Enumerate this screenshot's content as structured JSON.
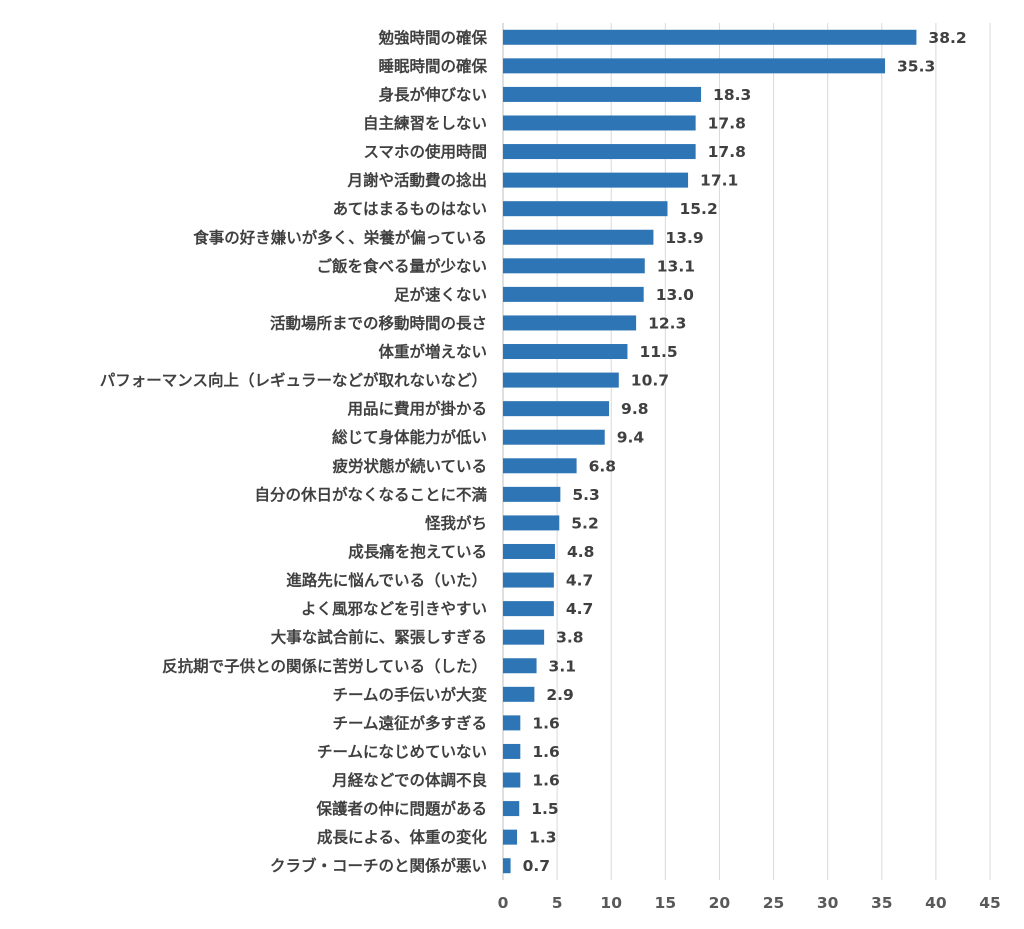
{
  "chart_data": {
    "type": "bar",
    "orientation": "horizontal",
    "bar_color": "#2e75b6",
    "text_color": "#404040",
    "grid": true,
    "xlim": [
      0,
      45
    ],
    "x_ticks": [
      0,
      5,
      10,
      15,
      20,
      25,
      30,
      35,
      40,
      45
    ],
    "title": "",
    "xlabel": "",
    "ylabel": "",
    "categories": [
      "勉強時間の確保",
      "睡眠時間の確保",
      "身長が伸びない",
      "自主練習をしない",
      "スマホの使用時間",
      "月謝や活動費の捻出",
      "あてはまるものはない",
      "食事の好き嫌いが多く、栄養が偏っている",
      "ご飯を食べる量が少ない",
      "足が速くない",
      "活動場所までの移動時間の長さ",
      "体重が増えない",
      "パフォーマンス向上（レギュラーなどが取れないなど）",
      "用品に費用が掛かる",
      "総じて身体能力が低い",
      "疲労状態が続いている",
      "自分の休日がなくなることに不満",
      "怪我がち",
      "成長痛を抱えている",
      "進路先に悩んでいる（いた）",
      "よく風邪などを引きやすい",
      "大事な試合前に、緊張しすぎる",
      "反抗期で子供との関係に苦労している（した）",
      "チームの手伝いが大変",
      "チーム遠征が多すぎる",
      "チームになじめていない",
      "月経などでの体調不良",
      "保護者の仲に問題がある",
      "成長による、体重の変化",
      "クラブ・コーチのと関係が悪い"
    ],
    "values": [
      38.2,
      35.3,
      18.3,
      17.8,
      17.8,
      17.1,
      15.2,
      13.9,
      13.1,
      13.0,
      12.3,
      11.5,
      10.7,
      9.8,
      9.4,
      6.8,
      5.3,
      5.2,
      4.8,
      4.7,
      4.7,
      3.8,
      3.1,
      2.9,
      1.6,
      1.6,
      1.6,
      1.5,
      1.3,
      0.7
    ],
    "value_labels": [
      "38.2",
      "35.3",
      "18.3",
      "17.8",
      "17.8",
      "17.1",
      "15.2",
      "13.9",
      "13.1",
      "13.0",
      "12.3",
      "11.5",
      "10.7",
      "9.8",
      "9.4",
      "6.8",
      "5.3",
      "5.2",
      "4.8",
      "4.7",
      "4.7",
      "3.8",
      "3.1",
      "2.9",
      "1.6",
      "1.6",
      "1.6",
      "1.5",
      "1.3",
      "0.7"
    ]
  }
}
